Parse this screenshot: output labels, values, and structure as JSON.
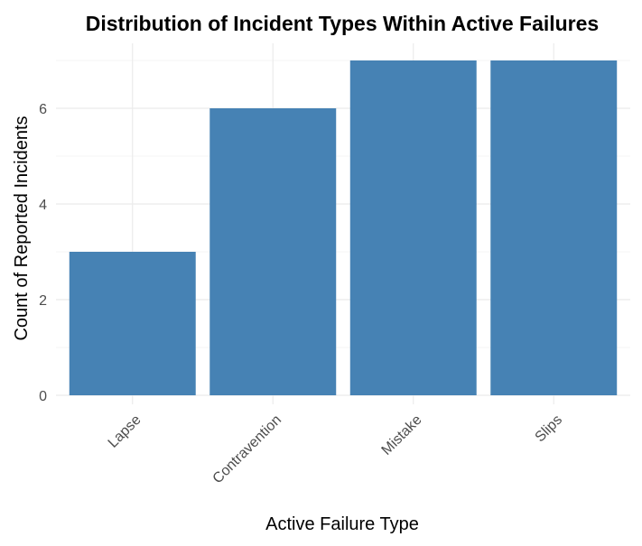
{
  "chart_data": {
    "type": "bar",
    "title": "Distribution of Incident Types Within Active Failures",
    "xlabel": "Active Failure Type",
    "ylabel": "Count of Reported Incidents",
    "categories": [
      "Lapse",
      "Contravention",
      "Mistake",
      "Slips"
    ],
    "values": [
      3,
      6,
      7,
      7
    ],
    "ylim": [
      0,
      7.35
    ],
    "yticks": [
      0,
      2,
      4,
      6
    ],
    "grid": true,
    "legend": "none",
    "bar_color": "#4682B4"
  }
}
